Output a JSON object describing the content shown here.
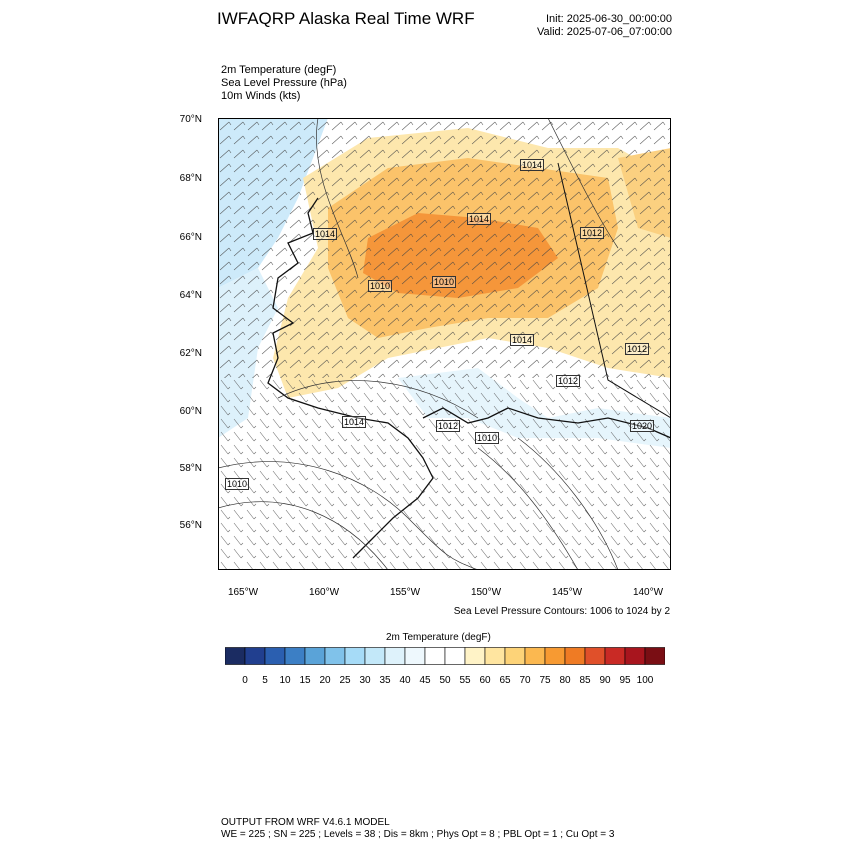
{
  "header": {
    "title": "IWFAQRP Alaska Real Time WRF",
    "init": "Init: 2025-06-30_00:00:00",
    "valid": "Valid: 2025-07-06_07:00:00"
  },
  "fields": [
    "2m Temperature   (degF)",
    "Sea Level Pressure   (hPa)",
    "10m Winds   (kts)"
  ],
  "map": {
    "lat_labels": [
      "70°N",
      "68°N",
      "66°N",
      "64°N",
      "62°N",
      "60°N",
      "58°N",
      "56°N"
    ],
    "lon_labels": [
      "165°W",
      "160°W",
      "155°W",
      "150°W",
      "145°W",
      "140°W"
    ],
    "contour_labels": [
      "1014",
      "1014",
      "1012",
      "1014",
      "1010",
      "1010",
      "1014",
      "1012",
      "1010",
      "1014",
      "1012",
      "1012",
      "1010",
      "1020"
    ],
    "slp_note": "Sea Level Pressure Contours: 1006 to 1024 by 2"
  },
  "colorbar": {
    "title": "2m Temperature  (degF)",
    "ticks": [
      "0",
      "5",
      "10",
      "15",
      "20",
      "25",
      "30",
      "35",
      "40",
      "45",
      "50",
      "55",
      "60",
      "65",
      "70",
      "75",
      "80",
      "85",
      "90",
      "95",
      "100"
    ],
    "colors": [
      "#1b2c62",
      "#213f8f",
      "#2b5fb0",
      "#3c7fc5",
      "#5aa3d8",
      "#80c2ea",
      "#a6dbf7",
      "#c3e8f9",
      "#def2fb",
      "#eef8fd",
      "#ffffff",
      "#ffffff",
      "#fff3c7",
      "#ffe5a0",
      "#fdd378",
      "#fbb850",
      "#f79a32",
      "#ef7b24",
      "#e0502a",
      "#c92a25",
      "#a8151e",
      "#7a0e14"
    ]
  },
  "footer": {
    "line1": "OUTPUT FROM WRF V4.6.1 MODEL",
    "line2": "WE = 225 ; SN = 225 ; Levels = 38 ; Dis = 8km ; Phys Opt = 8 ; PBL Opt = 1 ; Cu Opt = 3"
  }
}
